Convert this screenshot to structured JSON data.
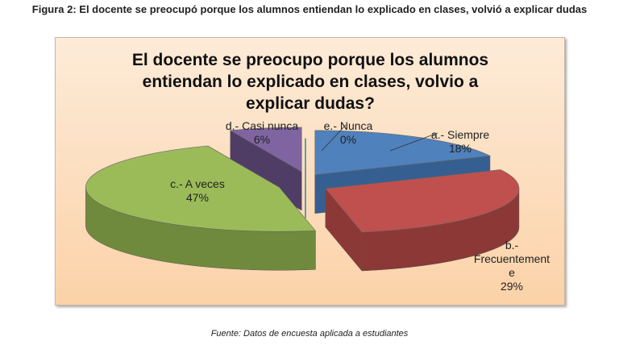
{
  "caption": "Figura 2: El docente se preocupó porque los alumnos entiendan lo explicado en clases, volvió a explicar dudas",
  "source": "Fuente: Datos de encuesta aplicada a estudiantes",
  "chart_data": {
    "type": "pie",
    "title": "El docente se preocupo porque los alumnos entiendan lo explicado en clases, volvio a explicar dudas?",
    "title_lines": [
      "El docente se preocupo porque los alumnos",
      "entiendan lo explicado en clases, volvio a",
      "explicar dudas?"
    ],
    "slices": [
      {
        "label": "a.- Siempre",
        "value": 18,
        "pct_label": "18%",
        "color": "#4f81bd",
        "side": "#365f91"
      },
      {
        "label": "b.- Frecuentemente",
        "value": 29,
        "pct_label": "29%",
        "color": "#c0504d",
        "side": "#8c3836",
        "label_lines": [
          "b.-",
          "Frecuentement",
          "e"
        ]
      },
      {
        "label": "c.- A veces",
        "value": 47,
        "pct_label": "47%",
        "color": "#9bbb59",
        "side": "#6f8a3c"
      },
      {
        "label": "d.- Casi nunca",
        "value": 6,
        "pct_label": "6%",
        "color": "#8064a2",
        "side": "#4f3d66"
      },
      {
        "label": "e.- Nunca",
        "value": 0,
        "pct_label": "0%",
        "color": "#4bacc6",
        "side": "#31859c"
      }
    ]
  }
}
